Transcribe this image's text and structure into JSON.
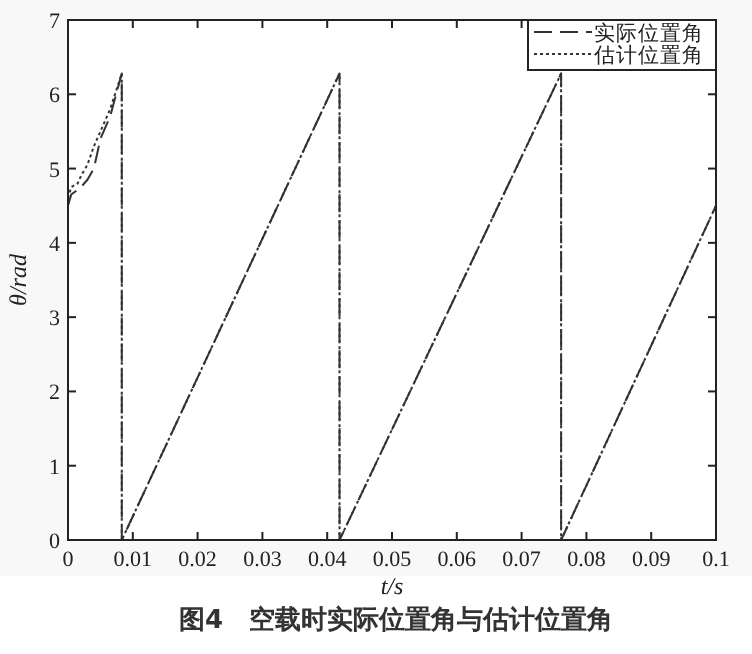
{
  "chart_data": {
    "type": "line",
    "title": "图4　空载时实际位置角与估计位置角",
    "xlabel": "t/s",
    "ylabel": "θ/rad",
    "xlim": [
      0,
      0.1
    ],
    "ylim": [
      0,
      7
    ],
    "xticks": [
      0,
      0.01,
      0.02,
      0.03,
      0.04,
      0.05,
      0.06,
      0.07,
      0.08,
      0.09,
      0.1
    ],
    "yticks": [
      0,
      1,
      2,
      3,
      4,
      5,
      6,
      7
    ],
    "legend": "top right",
    "series": [
      {
        "name": "实际位置角",
        "color": "#333333",
        "line_style": "dashed",
        "x": [
          0,
          0.0005,
          0.002,
          0.003,
          0.004,
          0.005,
          0.0065,
          0.0083,
          0.0083,
          0.0419,
          0.0419,
          0.0761,
          0.0761,
          0.1
        ],
        "values": [
          4.5,
          4.65,
          4.75,
          4.85,
          5.0,
          5.4,
          5.7,
          6.28,
          0,
          6.28,
          0,
          6.28,
          0,
          4.5
        ]
      },
      {
        "name": "估计位置角",
        "color": "#333333",
        "line_style": "dotted",
        "x": [
          0,
          0.0005,
          0.0015,
          0.002,
          0.003,
          0.004,
          0.005,
          0.0065,
          0.0083,
          0.0083,
          0.0419,
          0.0419,
          0.0761,
          0.0761,
          0.1
        ],
        "values": [
          4.6,
          4.75,
          4.8,
          4.9,
          5.05,
          5.3,
          5.5,
          5.8,
          6.28,
          0,
          6.28,
          0,
          6.28,
          0,
          4.5
        ]
      }
    ]
  }
}
